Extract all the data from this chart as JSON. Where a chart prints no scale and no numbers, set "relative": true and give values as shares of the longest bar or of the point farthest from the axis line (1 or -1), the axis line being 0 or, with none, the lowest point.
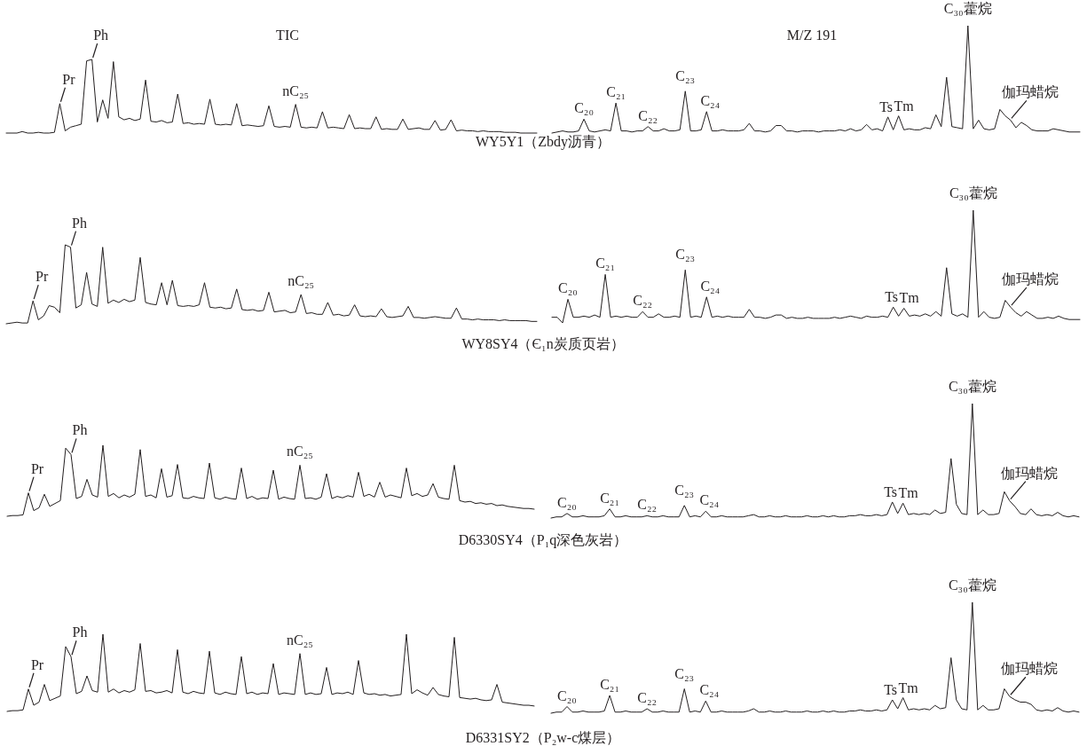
{
  "chart_data": [
    {
      "type": "line",
      "relative": true,
      "title": "TIC",
      "xlabel": "WY5Y1（Zbdy沥青）",
      "annotations": [
        "Pr",
        "Ph",
        "nC₂₅"
      ],
      "categories": [
        null,
        null,
        null,
        null,
        null,
        null,
        null,
        null,
        null,
        null,
        null,
        null,
        null,
        null,
        null,
        null,
        null,
        null,
        null,
        null,
        null,
        null,
        null,
        null,
        null,
        null,
        null,
        null,
        null,
        null,
        null,
        null,
        null,
        null,
        null,
        null,
        null,
        null,
        null,
        null,
        null,
        null,
        null,
        null,
        null,
        null,
        null,
        null,
        null,
        null,
        null,
        null,
        null,
        null,
        null,
        null,
        null,
        null,
        null,
        null,
        null,
        null,
        null,
        null,
        null,
        null,
        null,
        null,
        null,
        null,
        null,
        null,
        null,
        null,
        null,
        null,
        null,
        null,
        null,
        null,
        null,
        null,
        null,
        null,
        null,
        null,
        null,
        null,
        null,
        null,
        null,
        null,
        null,
        null,
        null,
        null,
        null,
        null,
        null,
        null
      ],
      "series": [
        {
          "color": "#231f20",
          "values": [
            0,
            0,
            0,
            0.02,
            0,
            0,
            0.01,
            0,
            0,
            0.01,
            0.4,
            0.03,
            0.08,
            0.1,
            0.12,
            0.98,
            1.0,
            0.15,
            0.45,
            0.2,
            0.97,
            0.22,
            0.18,
            0.2,
            0.17,
            0.19,
            0.72,
            0.16,
            0.15,
            0.17,
            0.14,
            0.15,
            0.53,
            0.13,
            0.14,
            0.12,
            0.13,
            0.12,
            0.46,
            0.12,
            0.11,
            0.12,
            0.11,
            0.4,
            0.1,
            0.11,
            0.1,
            0.09,
            0.1,
            0.37,
            0.09,
            0.08,
            0.09,
            0.08,
            0.39,
            0.08,
            0.07,
            0.08,
            0.07,
            0.29,
            0.07,
            0.08,
            0.07,
            0.06,
            0.25,
            0.06,
            0.07,
            0.06,
            0.06,
            0.22,
            0.05,
            0.06,
            0.05,
            0.05,
            0.19,
            0.05,
            0.06,
            0.07,
            0.05,
            0.05,
            0.17,
            0.04,
            0.05,
            0.18,
            0.03,
            0.04,
            0.03,
            0.03,
            0.02,
            0.03,
            0.02,
            0.02,
            0.02,
            0.01,
            0.01,
            0.01,
            0,
            0,
            0,
            0
          ]
        }
      ]
    },
    {
      "type": "line",
      "relative": true,
      "title": "M/Z  191",
      "annotations": [
        "C₂₀",
        "C₂₁",
        "C₂₂",
        "C₂₃",
        "C₂₄",
        "Ts",
        "Tm",
        "C₃₀藿烷",
        "伽玛蜡烷"
      ],
      "categories": [
        null,
        null,
        null,
        null,
        null,
        null,
        null,
        null,
        null,
        null,
        null,
        null,
        null,
        null,
        null,
        null,
        null,
        null,
        null,
        null,
        null,
        null,
        null,
        null,
        null,
        null,
        null,
        null,
        null,
        null,
        null,
        null,
        null,
        null,
        null,
        null,
        null,
        null,
        null,
        null,
        null,
        null,
        null,
        null,
        null,
        null,
        null,
        null,
        null,
        null,
        null,
        null,
        null,
        null,
        null,
        null,
        null,
        null,
        null,
        null,
        null,
        null,
        null,
        null,
        null,
        null,
        null,
        null,
        null,
        null,
        null,
        null,
        null,
        null,
        null,
        null,
        null,
        null,
        null,
        null,
        null,
        null,
        null,
        null,
        null,
        null,
        null,
        null,
        null,
        null,
        null,
        null,
        null,
        null,
        null,
        null,
        null,
        null,
        null,
        null
      ],
      "series": [
        {
          "color": "#231f20",
          "values": [
            0,
            0.01,
            0.02,
            0.01,
            0.01,
            0.02,
            0.13,
            0.02,
            0.01,
            0.02,
            0.03,
            0.02,
            0.28,
            0.02,
            0.02,
            0.01,
            0.02,
            0.02,
            0.06,
            0.02,
            0.02,
            0.04,
            0.02,
            0.02,
            0.03,
            0.39,
            0.02,
            0.02,
            0.03,
            0.2,
            0.02,
            0.02,
            0.03,
            0.02,
            0.02,
            0.02,
            0.03,
            0.09,
            0.02,
            0.02,
            0.01,
            0.02,
            0.07,
            0.07,
            0.02,
            0.02,
            0.01,
            0.02,
            0.02,
            0.02,
            0.01,
            0.02,
            0.02,
            0.02,
            0.03,
            0.02,
            0.04,
            0.02,
            0.03,
            0.08,
            0.03,
            0.04,
            0.02,
            0.15,
            0.03,
            0.16,
            0.03,
            0.04,
            0.03,
            0.03,
            0.05,
            0.04,
            0.17,
            0.06,
            0.52,
            0.06,
            0.05,
            0.04,
            1.0,
            0.04,
            0.12,
            0.04,
            0.03,
            0.04,
            0.22,
            0.16,
            0.12,
            0.05,
            0.1,
            0.07,
            0.03,
            0.02,
            0.02,
            0.02,
            0.04,
            0.03,
            0.02,
            0.01,
            0.01,
            0.01
          ]
        }
      ]
    },
    {
      "type": "line",
      "relative": true,
      "xlabel": "WY8SY4（Є₁n炭质页岩）",
      "annotations": [
        "Pr",
        "Ph",
        "nC₂₅"
      ],
      "categories": [
        null,
        null,
        null,
        null,
        null,
        null,
        null,
        null,
        null,
        null,
        null,
        null,
        null,
        null,
        null,
        null,
        null,
        null,
        null,
        null,
        null,
        null,
        null,
        null,
        null,
        null,
        null,
        null,
        null,
        null,
        null,
        null,
        null,
        null,
        null,
        null,
        null,
        null,
        null,
        null,
        null,
        null,
        null,
        null,
        null,
        null,
        null,
        null,
        null,
        null,
        null,
        null,
        null,
        null,
        null,
        null,
        null,
        null,
        null,
        null,
        null,
        null,
        null,
        null,
        null,
        null,
        null,
        null,
        null,
        null,
        null,
        null,
        null,
        null,
        null,
        null,
        null,
        null,
        null,
        null,
        null,
        null,
        null,
        null,
        null,
        null,
        null,
        null,
        null,
        null,
        null,
        null,
        null,
        null,
        null,
        null,
        null,
        null,
        null,
        null
      ],
      "series": [
        {
          "color": "#231f20",
          "values": [
            0,
            0.01,
            0.02,
            0.01,
            0.01,
            0.29,
            0.05,
            0.1,
            0.23,
            0.21,
            0.14,
            1.0,
            0.97,
            0.2,
            0.24,
            0.65,
            0.25,
            0.22,
            0.97,
            0.26,
            0.3,
            0.27,
            0.31,
            0.28,
            0.3,
            0.84,
            0.27,
            0.25,
            0.24,
            0.52,
            0.24,
            0.55,
            0.23,
            0.22,
            0.23,
            0.22,
            0.24,
            0.52,
            0.21,
            0.2,
            0.21,
            0.19,
            0.2,
            0.44,
            0.18,
            0.17,
            0.18,
            0.16,
            0.17,
            0.4,
            0.15,
            0.16,
            0.17,
            0.14,
            0.15,
            0.37,
            0.13,
            0.14,
            0.12,
            0.12,
            0.27,
            0.11,
            0.12,
            0.1,
            0.11,
            0.24,
            0.1,
            0.09,
            0.1,
            0.09,
            0.19,
            0.09,
            0.08,
            0.09,
            0.1,
            0.22,
            0.08,
            0.08,
            0.07,
            0.08,
            0.09,
            0.08,
            0.07,
            0.07,
            0.2,
            0.06,
            0.06,
            0.05,
            0.06,
            0.05,
            0.05,
            0.05,
            0.04,
            0.05,
            0.04,
            0.04,
            0.04,
            0.04,
            0.03,
            0.03
          ]
        }
      ]
    },
    {
      "type": "line",
      "relative": true,
      "annotations": [
        "C₂₀",
        "C₂₁",
        "C₂₂",
        "C₂₃",
        "C₂₄",
        "Ts",
        "Tm",
        "C₃₀藿烷",
        "伽玛蜡烷"
      ],
      "categories": [
        null,
        null,
        null,
        null,
        null,
        null,
        null,
        null,
        null,
        null,
        null,
        null,
        null,
        null,
        null,
        null,
        null,
        null,
        null,
        null,
        null,
        null,
        null,
        null,
        null,
        null,
        null,
        null,
        null,
        null,
        null,
        null,
        null,
        null,
        null,
        null,
        null,
        null,
        null,
        null,
        null,
        null,
        null,
        null,
        null,
        null,
        null,
        null,
        null,
        null,
        null,
        null,
        null,
        null,
        null,
        null,
        null,
        null,
        null,
        null,
        null,
        null,
        null,
        null,
        null,
        null,
        null,
        null,
        null,
        null,
        null,
        null,
        null,
        null,
        null,
        null,
        null,
        null,
        null,
        null,
        null,
        null,
        null,
        null,
        null,
        null,
        null,
        null,
        null,
        null,
        null,
        null,
        null,
        null,
        null,
        null,
        null,
        null,
        null,
        null
      ],
      "series": [
        {
          "color": "#231f20",
          "values": [
            0.05,
            0.05,
            0,
            0.21,
            0.05,
            0.05,
            0.06,
            0.05,
            0.07,
            0.05,
            0.43,
            0.05,
            0.06,
            0.05,
            0.06,
            0.05,
            0.05,
            0.1,
            0.05,
            0.05,
            0.08,
            0.05,
            0.05,
            0.06,
            0.05,
            0.47,
            0.05,
            0.06,
            0.05,
            0.23,
            0.05,
            0.06,
            0.05,
            0.06,
            0.05,
            0.05,
            0.05,
            0.12,
            0.05,
            0.05,
            0.04,
            0.05,
            0.07,
            0.07,
            0.04,
            0.05,
            0.04,
            0.04,
            0.05,
            0.04,
            0.04,
            0.04,
            0.04,
            0.05,
            0.04,
            0.05,
            0.06,
            0.05,
            0.04,
            0.06,
            0.05,
            0.05,
            0.06,
            0.05,
            0.14,
            0.06,
            0.13,
            0.06,
            0.07,
            0.06,
            0.08,
            0.06,
            0.1,
            0.06,
            0.49,
            0.08,
            0.06,
            0.08,
            0.05,
            1.0,
            0.05,
            0.1,
            0.05,
            0.04,
            0.05,
            0.2,
            0.14,
            0.09,
            0.06,
            0.1,
            0.07,
            0.04,
            0.04,
            0.05,
            0.04,
            0.06,
            0.04,
            0.03,
            0.03,
            0.03
          ]
        }
      ]
    },
    {
      "type": "line",
      "relative": true,
      "xlabel": "D6330SY4（P₁q深色灰岩）",
      "annotations": [
        "Pr",
        "Ph",
        "nC₂₅"
      ],
      "categories": [
        null,
        null,
        null,
        null,
        null,
        null,
        null,
        null,
        null,
        null,
        null,
        null,
        null,
        null,
        null,
        null,
        null,
        null,
        null,
        null,
        null,
        null,
        null,
        null,
        null,
        null,
        null,
        null,
        null,
        null,
        null,
        null,
        null,
        null,
        null,
        null,
        null,
        null,
        null,
        null,
        null,
        null,
        null,
        null,
        null,
        null,
        null,
        null,
        null,
        null,
        null,
        null,
        null,
        null,
        null,
        null,
        null,
        null,
        null,
        null,
        null,
        null,
        null,
        null,
        null,
        null,
        null,
        null,
        null,
        null,
        null,
        null,
        null,
        null,
        null,
        null,
        null,
        null,
        null,
        null,
        null,
        null,
        null,
        null,
        null,
        null,
        null,
        null,
        null,
        null,
        null,
        null,
        null,
        null,
        null,
        null,
        null,
        null,
        null,
        null
      ],
      "series": [
        {
          "color": "#231f20",
          "values": [
            0,
            0.01,
            0.01,
            0.02,
            0.33,
            0.08,
            0.12,
            0.31,
            0.14,
            0.18,
            0.22,
            0.96,
            0.87,
            0.25,
            0.28,
            0.52,
            0.3,
            0.27,
            1.0,
            0.28,
            0.32,
            0.26,
            0.3,
            0.27,
            0.31,
            0.94,
            0.28,
            0.3,
            0.26,
            0.67,
            0.27,
            0.29,
            0.73,
            0.26,
            0.25,
            0.28,
            0.26,
            0.25,
            0.75,
            0.26,
            0.24,
            0.27,
            0.25,
            0.24,
            0.68,
            0.25,
            0.28,
            0.24,
            0.26,
            0.25,
            0.65,
            0.24,
            0.27,
            0.25,
            0.24,
            0.72,
            0.25,
            0.26,
            0.24,
            0.27,
            0.6,
            0.25,
            0.28,
            0.26,
            0.29,
            0.27,
            0.62,
            0.28,
            0.31,
            0.27,
            0.48,
            0.27,
            0.3,
            0.28,
            0.26,
            0.68,
            0.29,
            0.32,
            0.28,
            0.3,
            0.46,
            0.27,
            0.25,
            0.24,
            0.72,
            0.22,
            0.2,
            0.21,
            0.18,
            0.19,
            0.17,
            0.18,
            0.15,
            0.16,
            0.14,
            0.13,
            0.12,
            0.11,
            0.11,
            0.1
          ]
        }
      ]
    },
    {
      "type": "line",
      "relative": true,
      "annotations": [
        "C₂₀",
        "C₂₁",
        "C₂₂",
        "C₂₃",
        "C₂₄",
        "Ts",
        "Tm",
        "C₃₀藿烷",
        "伽玛蜡烷"
      ],
      "categories": [
        null,
        null,
        null,
        null,
        null,
        null,
        null,
        null,
        null,
        null,
        null,
        null,
        null,
        null,
        null,
        null,
        null,
        null,
        null,
        null,
        null,
        null,
        null,
        null,
        null,
        null,
        null,
        null,
        null,
        null,
        null,
        null,
        null,
        null,
        null,
        null,
        null,
        null,
        null,
        null,
        null,
        null,
        null,
        null,
        null,
        null,
        null,
        null,
        null,
        null,
        null,
        null,
        null,
        null,
        null,
        null,
        null,
        null,
        null,
        null,
        null,
        null,
        null,
        null,
        null,
        null,
        null,
        null,
        null,
        null,
        null,
        null,
        null,
        null,
        null,
        null,
        null,
        null,
        null,
        null,
        null,
        null,
        null,
        null,
        null,
        null,
        null,
        null,
        null,
        null,
        null,
        null,
        null,
        null,
        null,
        null,
        null,
        null,
        null,
        null
      ],
      "series": [
        {
          "color": "#231f20",
          "values": [
            0,
            0.01,
            0.01,
            0.04,
            0.01,
            0.01,
            0.02,
            0.01,
            0.01,
            0.01,
            0.02,
            0.08,
            0.01,
            0.01,
            0.02,
            0.01,
            0.01,
            0.01,
            0.02,
            0.01,
            0.01,
            0.02,
            0.01,
            0.01,
            0.01,
            0.11,
            0.01,
            0.02,
            0.01,
            0.06,
            0.01,
            0.01,
            0.02,
            0.01,
            0.01,
            0.01,
            0.01,
            0.02,
            0.03,
            0.01,
            0.01,
            0.02,
            0.01,
            0.01,
            0.02,
            0.01,
            0.01,
            0.01,
            0.02,
            0.01,
            0.01,
            0.02,
            0.01,
            0.02,
            0.01,
            0.01,
            0.02,
            0.02,
            0.03,
            0.02,
            0.02,
            0.03,
            0.02,
            0.03,
            0.14,
            0.04,
            0.13,
            0.03,
            0.04,
            0.03,
            0.04,
            0.03,
            0.07,
            0.04,
            0.05,
            0.52,
            0.12,
            0.04,
            0.03,
            1.0,
            0.03,
            0.07,
            0.03,
            0.03,
            0.04,
            0.23,
            0.15,
            0.1,
            0.04,
            0.03,
            0.08,
            0.03,
            0.02,
            0.03,
            0.02,
            0.05,
            0.02,
            0.01,
            0.02,
            0.01
          ]
        }
      ]
    },
    {
      "type": "line",
      "relative": true,
      "xlabel": "D6331SY2（P₂w-c煤层）",
      "annotations": [
        "Pr",
        "Ph",
        "nC₂₅"
      ],
      "categories": [
        null,
        null,
        null,
        null,
        null,
        null,
        null,
        null,
        null,
        null,
        null,
        null,
        null,
        null,
        null,
        null,
        null,
        null,
        null,
        null,
        null,
        null,
        null,
        null,
        null,
        null,
        null,
        null,
        null,
        null,
        null,
        null,
        null,
        null,
        null,
        null,
        null,
        null,
        null,
        null,
        null,
        null,
        null,
        null,
        null,
        null,
        null,
        null,
        null,
        null,
        null,
        null,
        null,
        null,
        null,
        null,
        null,
        null,
        null,
        null,
        null,
        null,
        null,
        null,
        null,
        null,
        null,
        null,
        null,
        null,
        null,
        null,
        null,
        null,
        null,
        null,
        null,
        null,
        null,
        null,
        null,
        null,
        null,
        null,
        null,
        null,
        null,
        null,
        null,
        null,
        null,
        null,
        null,
        null,
        null,
        null,
        null,
        null,
        null,
        null
      ],
      "series": [
        {
          "color": "#231f20",
          "values": [
            0,
            0.01,
            0.01,
            0.02,
            0.29,
            0.08,
            0.12,
            0.35,
            0.14,
            0.17,
            0.2,
            0.84,
            0.71,
            0.23,
            0.26,
            0.46,
            0.27,
            0.25,
            1.0,
            0.25,
            0.29,
            0.24,
            0.27,
            0.25,
            0.28,
            0.88,
            0.26,
            0.27,
            0.24,
            0.25,
            0.27,
            0.24,
            0.8,
            0.25,
            0.23,
            0.26,
            0.24,
            0.23,
            0.78,
            0.24,
            0.22,
            0.25,
            0.23,
            0.22,
            0.71,
            0.23,
            0.25,
            0.22,
            0.24,
            0.23,
            0.62,
            0.22,
            0.24,
            0.23,
            0.22,
            0.75,
            0.22,
            0.24,
            0.22,
            0.23,
            0.57,
            0.22,
            0.24,
            0.23,
            0.25,
            0.22,
            0.66,
            0.24,
            0.22,
            0.23,
            0.21,
            0.22,
            0.2,
            0.21,
            0.22,
            1.0,
            0.23,
            0.28,
            0.24,
            0.21,
            0.31,
            0.22,
            0.2,
            0.19,
            0.96,
            0.18,
            0.17,
            0.16,
            0.17,
            0.15,
            0.14,
            0.15,
            0.35,
            0.12,
            0.11,
            0.1,
            0.09,
            0.08,
            0.08,
            0.07
          ]
        }
      ]
    },
    {
      "type": "line",
      "relative": true,
      "annotations": [
        "C₂₀",
        "C₂₁",
        "C₂₂",
        "C₂₃",
        "C₂₄",
        "Ts",
        "Tm",
        "C₃₀藿烷",
        "伽玛蜡烷"
      ],
      "categories": [
        null,
        null,
        null,
        null,
        null,
        null,
        null,
        null,
        null,
        null,
        null,
        null,
        null,
        null,
        null,
        null,
        null,
        null,
        null,
        null,
        null,
        null,
        null,
        null,
        null,
        null,
        null,
        null,
        null,
        null,
        null,
        null,
        null,
        null,
        null,
        null,
        null,
        null,
        null,
        null,
        null,
        null,
        null,
        null,
        null,
        null,
        null,
        null,
        null,
        null,
        null,
        null,
        null,
        null,
        null,
        null,
        null,
        null,
        null,
        null,
        null,
        null,
        null,
        null,
        null,
        null,
        null,
        null,
        null,
        null,
        null,
        null,
        null,
        null,
        null,
        null,
        null,
        null,
        null,
        null,
        null,
        null,
        null,
        null,
        null,
        null,
        null,
        null,
        null,
        null,
        null,
        null,
        null,
        null,
        null,
        null,
        null,
        null,
        null,
        null
      ],
      "series": [
        {
          "color": "#231f20",
          "values": [
            0,
            0.01,
            0.01,
            0.06,
            0.01,
            0.01,
            0.02,
            0.01,
            0.01,
            0.01,
            0.02,
            0.16,
            0.01,
            0.01,
            0.02,
            0.01,
            0.01,
            0.01,
            0.04,
            0.01,
            0.01,
            0.02,
            0.01,
            0.01,
            0.01,
            0.22,
            0.01,
            0.02,
            0.01,
            0.11,
            0.01,
            0.01,
            0.02,
            0.01,
            0.01,
            0.01,
            0.01,
            0.02,
            0.04,
            0.01,
            0.01,
            0.02,
            0.01,
            0.01,
            0.02,
            0.01,
            0.01,
            0.01,
            0.02,
            0.01,
            0.01,
            0.02,
            0.01,
            0.02,
            0.01,
            0.01,
            0.02,
            0.02,
            0.03,
            0.02,
            0.02,
            0.03,
            0.02,
            0.03,
            0.12,
            0.04,
            0.14,
            0.03,
            0.04,
            0.03,
            0.04,
            0.03,
            0.07,
            0.04,
            0.05,
            0.5,
            0.12,
            0.04,
            0.03,
            1.0,
            0.03,
            0.07,
            0.03,
            0.03,
            0.04,
            0.22,
            0.15,
            0.12,
            0.1,
            0.1,
            0.08,
            0.03,
            0.02,
            0.03,
            0.02,
            0.05,
            0.02,
            0.01,
            0.02,
            0.01
          ]
        }
      ]
    }
  ]
}
